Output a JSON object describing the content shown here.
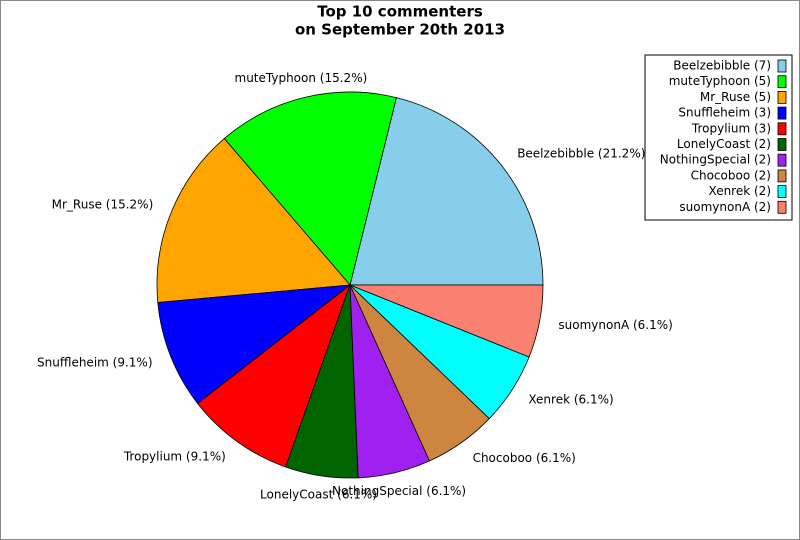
{
  "chart_data": {
    "type": "pie",
    "title": [
      "Top 10 commenters",
      "on September 20th 2013"
    ],
    "categories": [
      "Beelzebibble (7)",
      "muteTyphoon (5)",
      "Mr_Ruse (5)",
      "Snuffleheim (3)",
      "Tropylium (3)",
      "LonelyCoast (2)",
      "NothingSpecial (2)",
      "Chocoboo (2)",
      "Xenrek (2)",
      "suomynonA (2)"
    ],
    "values": [
      21.2,
      15.2,
      15.2,
      9.1,
      9.1,
      6.1,
      6.1,
      6.1,
      6.1,
      6.1
    ],
    "value_labels": [
      "Beelzebibble (21.2%)",
      "muteTyphoon (15.2%)",
      "Mr_Ruse (15.2%)",
      "Snuffleheim (9.1%)",
      "Tropylium (9.1%)",
      "LonelyCoast (6.1%)",
      "NothingSpecial (6.1%)",
      "Chocoboo (6.1%)",
      "Xenrek (6.1%)",
      "suomynonA (6.1%)"
    ],
    "colors": [
      "#87ceeb",
      "#00ff00",
      "#ffa500",
      "#0000ff",
      "#ff0000",
      "#006400",
      "#a020f0",
      "#cd853f",
      "#00ffff",
      "#fa8072"
    ],
    "legend": "upper right"
  }
}
